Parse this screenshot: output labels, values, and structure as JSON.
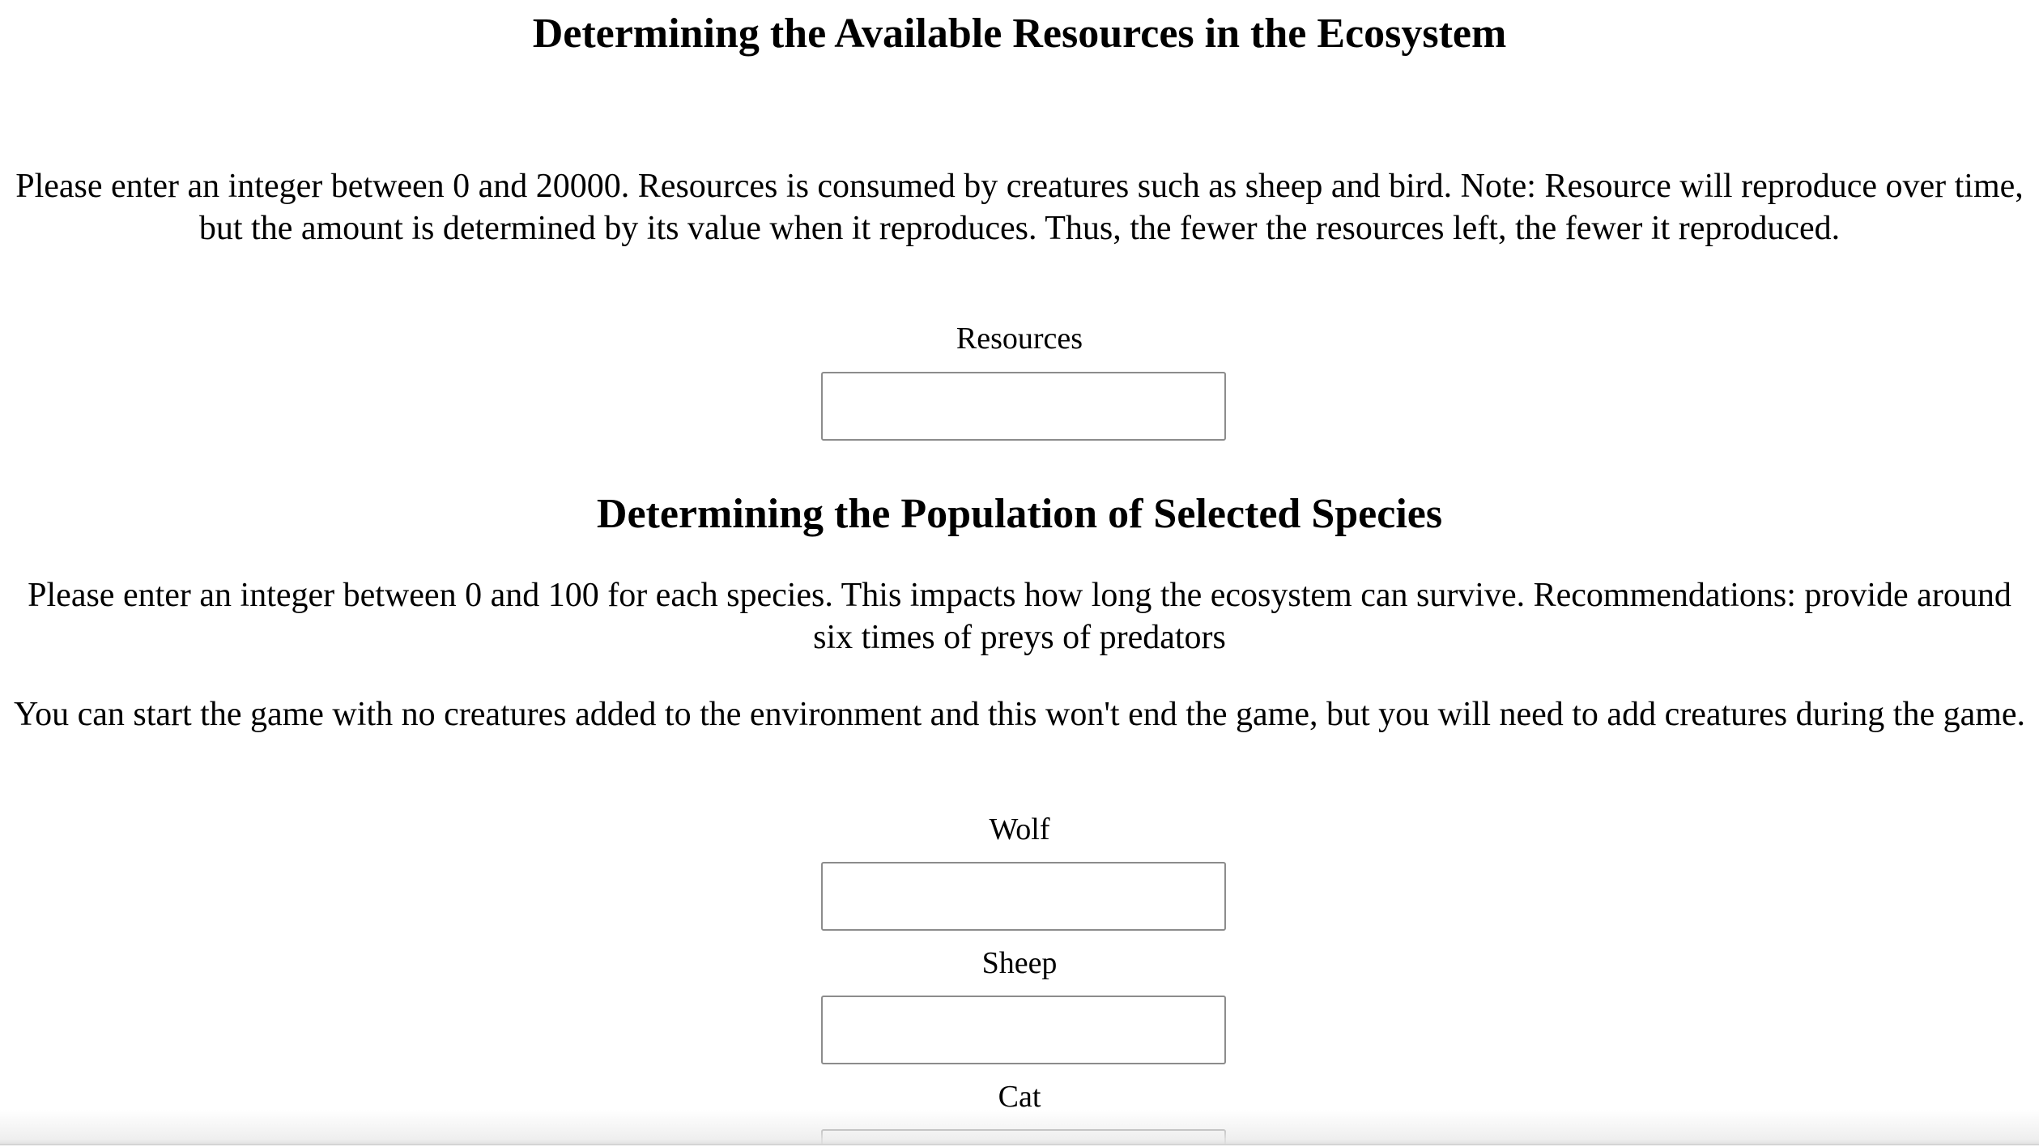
{
  "resources_section": {
    "heading": "Determining the Available Resources in the Ecosystem",
    "description": "Please enter an integer between 0 and 20000. Resources is consumed by creatures such as sheep and bird. Note: Resource will reproduce over time, but the amount is determined by its value when it reproduces. Thus, the fewer the resources left, the fewer it reproduced.",
    "field_label": "Resources",
    "field_value": ""
  },
  "population_section": {
    "heading": "Determining the Population of Selected Species",
    "description": "Please enter an integer between 0 and 100 for each species. This impacts how long the ecosystem can survive. Recommendations: provide around six times of preys of predators",
    "note": "You can start the game with no creatures added to the environment and this won't end the game, but you will need to add creatures during the game.",
    "species": [
      {
        "label": "Wolf",
        "value": ""
      },
      {
        "label": "Sheep",
        "value": ""
      },
      {
        "label": "Cat",
        "value": ""
      }
    ]
  }
}
